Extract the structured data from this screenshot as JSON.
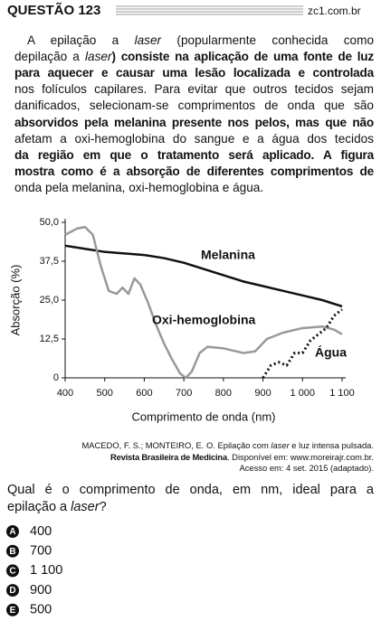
{
  "header": {
    "title": "QUESTÃO 123",
    "source": "zc1.com.br"
  },
  "paragraph": [
    [
      {
        "text": "A epilação a ",
        "style": "normal"
      },
      {
        "text": "laser",
        "style": "italic"
      },
      {
        "text": " (popularmente conhecida como",
        "style": "normal"
      }
    ],
    [
      {
        "text": "depilação a ",
        "style": "normal"
      },
      {
        "text": "laser",
        "style": "italic"
      },
      {
        "text": ") consiste na aplicação de uma fonte de luz",
        "style": "bold"
      }
    ],
    [
      {
        "text": "para aquecer e causar uma lesão localizada e controlada",
        "style": "bold"
      }
    ],
    [
      {
        "text": "nos folículos capilares. Para evitar que outros tecidos sejam",
        "style": "normal"
      }
    ],
    [
      {
        "text": "danificados, selecionam-se comprimentos de onda que são",
        "style": "normal"
      }
    ],
    [
      {
        "text": "absorvidos pela melanina presente nos pelos, mas que não",
        "style": "bold"
      }
    ],
    [
      {
        "text": "afetam a oxi-hemoglobina do sangue e a água dos tecidos",
        "style": "normal"
      }
    ],
    [
      {
        "text": "da região em que o tratamento será aplicado. A figura",
        "style": "bold"
      }
    ],
    [
      {
        "text": "mostra como é a absorção de diferentes comprimentos de",
        "style": "bold"
      }
    ],
    [
      {
        "text": "onda pela melanina, oxi-hemoglobina e água.",
        "style": "normal"
      }
    ]
  ],
  "chart_data": {
    "type": "line",
    "x_label": "Comprimento de onda (nm)",
    "y_label": "Absorção (%)",
    "xlim": [
      400,
      1100
    ],
    "ylim": [
      0,
      50
    ],
    "xticks": [
      400,
      500,
      600,
      700,
      800,
      900,
      {
        "value": 1000,
        "label": "1 000"
      },
      {
        "value": 1100,
        "label": "1 100"
      }
    ],
    "yticks": [
      {
        "value": 0,
        "label": "0"
      },
      {
        "value": 12.5,
        "label": "12,5"
      },
      {
        "value": 25,
        "label": "25,0"
      },
      {
        "value": 37.5,
        "label": "37,5"
      },
      {
        "value": 50,
        "label": "50,0"
      }
    ],
    "grid": false,
    "series": [
      {
        "name": "Melanina",
        "color": "#111111",
        "style": "solid",
        "x": [
          400,
          450,
          500,
          550,
          600,
          650,
          700,
          750,
          800,
          850,
          900,
          950,
          1000,
          1050,
          1100
        ],
        "values": [
          42.5,
          41.5,
          40.5,
          40,
          39.5,
          38.5,
          37,
          35,
          33,
          31,
          29.5,
          28,
          26.5,
          25,
          23
        ]
      },
      {
        "name": "Oxi-hemoglobina",
        "color": "#999999",
        "style": "solid",
        "x": [
          400,
          430,
          450,
          470,
          490,
          510,
          530,
          545,
          560,
          575,
          590,
          610,
          630,
          650,
          670,
          690,
          705,
          720,
          740,
          760,
          800,
          850,
          880,
          910,
          950,
          1000,
          1050,
          1080,
          1100
        ],
        "values": [
          46,
          48,
          48.5,
          46,
          36,
          28,
          27,
          29,
          27,
          32,
          30,
          24,
          17,
          11,
          6,
          1.5,
          0,
          2,
          8,
          10,
          9.5,
          8,
          8.5,
          12.5,
          14.5,
          16,
          16.5,
          15.5,
          14
        ]
      },
      {
        "name": "Água",
        "color": "#111111",
        "style": "dotted",
        "x": [
          900,
          920,
          940,
          960,
          980,
          1000,
          1020,
          1040,
          1060,
          1080,
          1100
        ],
        "values": [
          0,
          4,
          5,
          4,
          8,
          8,
          12,
          14,
          16,
          20,
          22
        ]
      }
    ]
  },
  "citation": [
    [
      {
        "text": "MACEDO, F. S.; MONTEIRO, E. O. Epilação com ",
        "style": "normal"
      },
      {
        "text": "laser",
        "style": "italic"
      },
      {
        "text": " e luz intensa pulsada.",
        "style": "normal"
      }
    ],
    [
      {
        "text": "Revista Brasileira de Medicina",
        "style": "bold"
      },
      {
        "text": ". Disponível em: www.moreirajr.com.br.",
        "style": "normal"
      }
    ],
    [
      {
        "text": "Acesso em: 4 set. 2015 (adaptado).",
        "style": "normal"
      }
    ]
  ],
  "question": [
    [
      {
        "text": "Qual é o comprimento de onda, em nm, ideal para a",
        "style": "normal"
      }
    ],
    [
      {
        "text": "epilação a ",
        "style": "normal"
      },
      {
        "text": "laser",
        "style": "italic"
      },
      {
        "text": "?",
        "style": "normal"
      }
    ]
  ],
  "options": [
    {
      "letter": "A",
      "text": "400"
    },
    {
      "letter": "B",
      "text": "700"
    },
    {
      "letter": "C",
      "text": "1 100"
    },
    {
      "letter": "D",
      "text": "900"
    },
    {
      "letter": "E",
      "text": "500"
    }
  ]
}
